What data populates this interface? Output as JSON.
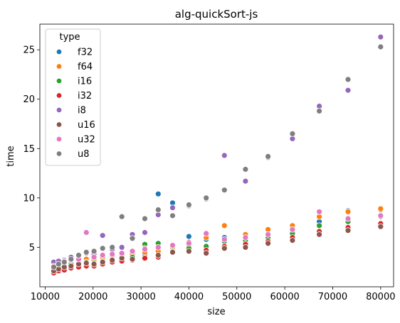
{
  "chart_data": {
    "type": "scatter",
    "title": "alg-quickSort-js",
    "xlabel": "size",
    "ylabel": "time",
    "xlim": [
      8900,
      82700
    ],
    "ylim": [
      1.0,
      27.6
    ],
    "xticks": [
      10000,
      20000,
      30000,
      40000,
      50000,
      60000,
      70000,
      80000
    ],
    "yticks": [
      5,
      10,
      15,
      20,
      25
    ],
    "grid": false,
    "legend": {
      "title": "type",
      "placement": "top-left"
    },
    "series": [
      {
        "name": "f32",
        "color": "#1f77b4",
        "points": [
          [
            11800,
            3.0
          ],
          [
            12800,
            3.2
          ],
          [
            14000,
            3.3
          ],
          [
            15400,
            3.5
          ],
          [
            17000,
            3.6
          ],
          [
            18600,
            3.7
          ],
          [
            20200,
            3.6
          ],
          [
            22000,
            3.9
          ],
          [
            24000,
            4.0
          ],
          [
            26000,
            4.1
          ],
          [
            28200,
            4.2
          ],
          [
            30800,
            4.3
          ],
          [
            33600,
            10.4
          ],
          [
            36600,
            9.5
          ],
          [
            40000,
            6.1
          ],
          [
            43600,
            5.8
          ],
          [
            47400,
            6.0
          ],
          [
            51800,
            5.9
          ],
          [
            56500,
            6.4
          ],
          [
            61600,
            6.6
          ],
          [
            67200,
            7.6
          ],
          [
            73200,
            8.7
          ],
          [
            80000,
            8.8
          ]
        ]
      },
      {
        "name": "f64",
        "color": "#ff7f0e",
        "points": [
          [
            11800,
            2.9
          ],
          [
            12800,
            3.1
          ],
          [
            14000,
            3.4
          ],
          [
            15400,
            3.5
          ],
          [
            17000,
            3.6
          ],
          [
            18600,
            3.8
          ],
          [
            20200,
            3.7
          ],
          [
            22000,
            3.9
          ],
          [
            24000,
            4.1
          ],
          [
            26000,
            4.2
          ],
          [
            28200,
            4.3
          ],
          [
            30800,
            4.5
          ],
          [
            33600,
            4.6
          ],
          [
            36600,
            5.0
          ],
          [
            40000,
            5.2
          ],
          [
            43600,
            6.0
          ],
          [
            47400,
            7.2
          ],
          [
            51800,
            6.3
          ],
          [
            56500,
            6.8
          ],
          [
            61600,
            7.2
          ],
          [
            67200,
            8.1
          ],
          [
            73200,
            8.6
          ],
          [
            80000,
            8.9
          ]
        ]
      },
      {
        "name": "i16",
        "color": "#2ca02c",
        "points": [
          [
            11800,
            2.8
          ],
          [
            12800,
            3.0
          ],
          [
            14000,
            3.1
          ],
          [
            15400,
            3.3
          ],
          [
            17000,
            3.4
          ],
          [
            18600,
            3.5
          ],
          [
            20200,
            3.4
          ],
          [
            22000,
            3.6
          ],
          [
            24000,
            3.8
          ],
          [
            26000,
            3.9
          ],
          [
            28200,
            4.0
          ],
          [
            30800,
            5.3
          ],
          [
            33600,
            5.4
          ],
          [
            36600,
            4.6
          ],
          [
            40000,
            4.9
          ],
          [
            43600,
            5.1
          ],
          [
            47400,
            5.6
          ],
          [
            51800,
            5.7
          ],
          [
            56500,
            6.0
          ],
          [
            61600,
            6.4
          ],
          [
            67200,
            7.2
          ],
          [
            73200,
            7.6
          ],
          [
            80000,
            8.1
          ]
        ]
      },
      {
        "name": "i32",
        "color": "#d62728",
        "points": [
          [
            11800,
            2.4
          ],
          [
            12800,
            2.6
          ],
          [
            14000,
            2.7
          ],
          [
            15400,
            2.9
          ],
          [
            17000,
            3.0
          ],
          [
            18600,
            3.1
          ],
          [
            20200,
            3.1
          ],
          [
            22000,
            3.3
          ],
          [
            24000,
            3.5
          ],
          [
            26000,
            3.6
          ],
          [
            28200,
            3.7
          ],
          [
            30800,
            3.9
          ],
          [
            33600,
            4.0
          ],
          [
            36600,
            5.2
          ],
          [
            40000,
            5.5
          ],
          [
            43600,
            4.7
          ],
          [
            47400,
            5.1
          ],
          [
            51800,
            5.3
          ],
          [
            56500,
            5.6
          ],
          [
            61600,
            6.0
          ],
          [
            67200,
            6.6
          ],
          [
            73200,
            7.0
          ],
          [
            80000,
            7.4
          ]
        ]
      },
      {
        "name": "i8",
        "color": "#9467bd",
        "points": [
          [
            11800,
            3.5
          ],
          [
            12800,
            3.6
          ],
          [
            14000,
            3.7
          ],
          [
            15400,
            4.0
          ],
          [
            17000,
            4.2
          ],
          [
            18600,
            4.4
          ],
          [
            20200,
            4.3
          ],
          [
            22000,
            6.2
          ],
          [
            24000,
            4.8
          ],
          [
            26000,
            5.0
          ],
          [
            28200,
            6.3
          ],
          [
            30800,
            6.5
          ],
          [
            33600,
            8.3
          ],
          [
            36600,
            9.0
          ],
          [
            40000,
            9.2
          ],
          [
            43600,
            9.9
          ],
          [
            47400,
            14.3
          ],
          [
            51800,
            11.7
          ],
          [
            56500,
            14.1
          ],
          [
            61600,
            16.0
          ],
          [
            67200,
            19.3
          ],
          [
            73200,
            20.9
          ],
          [
            80000,
            26.3
          ]
        ]
      },
      {
        "name": "u16",
        "color": "#8c564b",
        "points": [
          [
            11800,
            2.6
          ],
          [
            12800,
            2.8
          ],
          [
            14000,
            3.0
          ],
          [
            15400,
            3.1
          ],
          [
            17000,
            3.3
          ],
          [
            18600,
            3.4
          ],
          [
            20200,
            3.3
          ],
          [
            22000,
            3.5
          ],
          [
            24000,
            3.7
          ],
          [
            26000,
            3.9
          ],
          [
            28200,
            3.8
          ],
          [
            30800,
            4.9
          ],
          [
            33600,
            4.2
          ],
          [
            36600,
            4.5
          ],
          [
            40000,
            4.6
          ],
          [
            43600,
            4.4
          ],
          [
            47400,
            4.9
          ],
          [
            51800,
            5.0
          ],
          [
            56500,
            5.4
          ],
          [
            61600,
            5.7
          ],
          [
            67200,
            6.3
          ],
          [
            73200,
            6.7
          ],
          [
            80000,
            7.1
          ]
        ]
      },
      {
        "name": "u32",
        "color": "#e377c2",
        "points": [
          [
            11800,
            3.1
          ],
          [
            12800,
            3.3
          ],
          [
            14000,
            3.6
          ],
          [
            15400,
            3.7
          ],
          [
            17000,
            3.8
          ],
          [
            18600,
            6.5
          ],
          [
            20200,
            4.0
          ],
          [
            22000,
            4.2
          ],
          [
            24000,
            4.3
          ],
          [
            26000,
            4.4
          ],
          [
            28200,
            4.6
          ],
          [
            30800,
            4.8
          ],
          [
            33600,
            5.0
          ],
          [
            36600,
            5.2
          ],
          [
            40000,
            5.4
          ],
          [
            43600,
            6.4
          ],
          [
            47400,
            5.8
          ],
          [
            51800,
            6.0
          ],
          [
            56500,
            6.3
          ],
          [
            61600,
            6.8
          ],
          [
            67200,
            8.6
          ],
          [
            73200,
            7.9
          ],
          [
            80000,
            8.2
          ]
        ]
      },
      {
        "name": "u8",
        "color": "#7f7f7f",
        "points": [
          [
            11800,
            3.0
          ],
          [
            12800,
            3.3
          ],
          [
            14000,
            3.5
          ],
          [
            15400,
            3.8
          ],
          [
            17000,
            4.2
          ],
          [
            18600,
            4.5
          ],
          [
            20200,
            4.6
          ],
          [
            22000,
            4.9
          ],
          [
            24000,
            5.0
          ],
          [
            26000,
            8.1
          ],
          [
            28200,
            5.9
          ],
          [
            30800,
            7.9
          ],
          [
            33600,
            8.8
          ],
          [
            36600,
            8.2
          ],
          [
            40000,
            9.3
          ],
          [
            43600,
            10.0
          ],
          [
            47400,
            10.8
          ],
          [
            51800,
            12.9
          ],
          [
            56500,
            14.2
          ],
          [
            61600,
            16.5
          ],
          [
            67200,
            18.8
          ],
          [
            73200,
            22.0
          ],
          [
            80000,
            25.3
          ]
        ]
      }
    ]
  }
}
